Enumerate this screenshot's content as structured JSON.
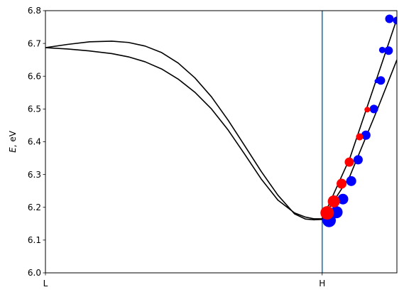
{
  "chart_data": {
    "type": "line",
    "title": "",
    "xlabel": "",
    "ylabel": "E, eV",
    "ylabel_main": "E",
    "ylabel_unit": ", eV",
    "ylim": [
      6.0,
      6.8
    ],
    "yticks": [
      6.0,
      6.1,
      6.2,
      6.3,
      6.4,
      6.5,
      6.6,
      6.7,
      6.8
    ],
    "ytick_labels": [
      "6.0",
      "6.1",
      "6.2",
      "6.3",
      "6.4",
      "6.5",
      "6.6",
      "6.7",
      "6.8"
    ],
    "xlim": [
      0,
      1.27
    ],
    "xticks": [
      0,
      1
    ],
    "xtick_labels": [
      "L",
      "H"
    ],
    "vline_at": 1,
    "vline_color": "#1f77b4",
    "grid": false,
    "series": [
      {
        "color": "#000000",
        "x": [
          0,
          0.08,
          0.16,
          0.24,
          0.3,
          0.36,
          0.42,
          0.48,
          0.54,
          0.6,
          0.66,
          0.72,
          0.78,
          0.84,
          0.9,
          0.94,
          0.97,
          1.0,
          1.1,
          1.2,
          1.27
        ],
        "y": [
          6.687,
          6.697,
          6.705,
          6.707,
          6.703,
          6.692,
          6.672,
          6.64,
          6.595,
          6.537,
          6.466,
          6.388,
          6.309,
          6.237,
          6.18,
          6.164,
          6.162,
          6.163,
          6.35,
          6.6,
          6.775
        ]
      },
      {
        "color": "#000000",
        "x": [
          0,
          0.08,
          0.16,
          0.24,
          0.3,
          0.36,
          0.42,
          0.48,
          0.54,
          0.6,
          0.66,
          0.72,
          0.78,
          0.84,
          0.9,
          0.94,
          0.97,
          1.0,
          1.1,
          1.2,
          1.27
        ],
        "y": [
          6.687,
          6.683,
          6.677,
          6.669,
          6.659,
          6.644,
          6.622,
          6.591,
          6.551,
          6.5,
          6.436,
          6.362,
          6.286,
          6.222,
          6.183,
          6.17,
          6.165,
          6.165,
          6.295,
          6.5,
          6.65
        ]
      }
    ],
    "markers": [
      {
        "x": 1.025,
        "y": 6.16,
        "size": 9.5,
        "color": "#0000ff"
      },
      {
        "x": 1.052,
        "y": 6.185,
        "size": 8.5,
        "color": "#0000ff"
      },
      {
        "x": 1.075,
        "y": 6.225,
        "size": 7.5,
        "color": "#0000ff"
      },
      {
        "x": 1.105,
        "y": 6.28,
        "size": 7,
        "color": "#0000ff"
      },
      {
        "x": 1.13,
        "y": 6.345,
        "size": 6.5,
        "color": "#0000ff"
      },
      {
        "x": 1.158,
        "y": 6.42,
        "size": 6.5,
        "color": "#0000ff"
      },
      {
        "x": 1.187,
        "y": 6.5,
        "size": 6,
        "color": "#0000ff"
      },
      {
        "x": 1.197,
        "y": 6.585,
        "size": 3,
        "color": "#0000ff"
      },
      {
        "x": 1.212,
        "y": 6.587,
        "size": 6,
        "color": "#0000ff"
      },
      {
        "x": 1.217,
        "y": 6.68,
        "size": 4.5,
        "color": "#0000ff"
      },
      {
        "x": 1.24,
        "y": 6.678,
        "size": 6,
        "color": "#0000ff"
      },
      {
        "x": 1.243,
        "y": 6.775,
        "size": 6,
        "color": "#0000ff"
      },
      {
        "x": 1.27,
        "y": 6.77,
        "size": 5.5,
        "color": "#0000ff"
      },
      {
        "x": 1.018,
        "y": 6.183,
        "size": 9.5,
        "color": "#ff0000"
      },
      {
        "x": 1.042,
        "y": 6.218,
        "size": 8.5,
        "color": "#ff0000"
      },
      {
        "x": 1.07,
        "y": 6.272,
        "size": 7,
        "color": "#ff0000"
      },
      {
        "x": 1.098,
        "y": 6.338,
        "size": 6.5,
        "color": "#ff0000"
      },
      {
        "x": 1.135,
        "y": 6.415,
        "size": 5,
        "color": "#ff0000"
      },
      {
        "x": 1.163,
        "y": 6.498,
        "size": 4,
        "color": "#ff0000"
      }
    ]
  }
}
